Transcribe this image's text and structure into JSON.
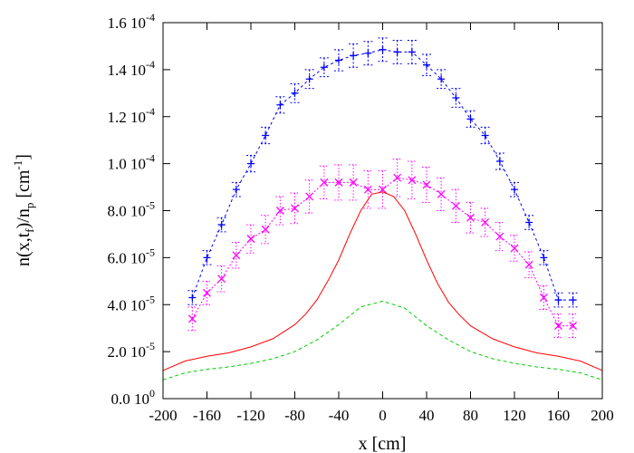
{
  "chart_data": {
    "type": "line",
    "title": "",
    "xlabel": "x [cm]",
    "ylabel": "n(x,t_f)/n_p [cm^-1]",
    "xlim": [
      -200,
      200
    ],
    "ylim": [
      0,
      0.00016
    ],
    "grid": false,
    "legend": "none",
    "x_ticks": [
      {
        "value": -200,
        "label": "-200"
      },
      {
        "value": -160,
        "label": "-160"
      },
      {
        "value": -120,
        "label": "-120"
      },
      {
        "value": -80,
        "label": "-80"
      },
      {
        "value": -40,
        "label": "-40"
      },
      {
        "value": 0,
        "label": "0"
      },
      {
        "value": 40,
        "label": "40"
      },
      {
        "value": 80,
        "label": "80"
      },
      {
        "value": 120,
        "label": "120"
      },
      {
        "value": 160,
        "label": "160"
      },
      {
        "value": 200,
        "label": "200"
      }
    ],
    "y_ticks": [
      {
        "value": 0,
        "mant": "0.0 10",
        "exp": "0"
      },
      {
        "value": 2e-05,
        "mant": "2.0 10",
        "exp": "-5"
      },
      {
        "value": 4e-05,
        "mant": "4.0 10",
        "exp": "-5"
      },
      {
        "value": 6e-05,
        "mant": "6.0 10",
        "exp": "-5"
      },
      {
        "value": 8e-05,
        "mant": "8.0 10",
        "exp": "-5"
      },
      {
        "value": 0.0001,
        "mant": "1.0 10",
        "exp": "-4"
      },
      {
        "value": 0.00012,
        "mant": "1.2 10",
        "exp": "-4"
      },
      {
        "value": 0.00014,
        "mant": "1.4 10",
        "exp": "-4"
      },
      {
        "value": 0.00016,
        "mant": "1.6 10",
        "exp": "-4"
      }
    ],
    "series": [
      {
        "color": "#0000ff",
        "marker": "plus",
        "dash": "3,3",
        "x": [
          -173.3,
          -160,
          -146.7,
          -133.3,
          -120,
          -106.7,
          -93.3,
          -80,
          -66.7,
          -53.3,
          -40,
          -26.7,
          -13.3,
          0,
          13.3,
          26.7,
          40,
          53.3,
          66.7,
          80,
          93.3,
          106.7,
          120,
          133.3,
          146.7,
          160,
          173.3
        ],
        "y": [
          4.3e-05,
          6e-05,
          7.4e-05,
          8.9e-05,
          0.0001,
          0.000112,
          0.000125,
          0.00013,
          0.000136,
          0.000141,
          0.000144,
          0.000146,
          0.000147,
          0.0001485,
          0.0001475,
          0.0001475,
          0.000142,
          0.000136,
          0.000128,
          0.000119,
          0.000112,
          0.000101,
          8.9e-05,
          7.5e-05,
          6e-05,
          4.2e-05,
          4.2e-05
        ],
        "err": [
          3e-06,
          3e-06,
          3e-06,
          3e-06,
          3.5e-06,
          3.5e-06,
          3.5e-06,
          4e-06,
          4e-06,
          4e-06,
          4.5e-06,
          5e-06,
          5e-06,
          5e-06,
          5e-06,
          5e-06,
          4.5e-06,
          4e-06,
          4e-06,
          3.5e-06,
          3.5e-06,
          3.5e-06,
          3e-06,
          3e-06,
          3e-06,
          3e-06,
          3e-06
        ]
      },
      {
        "color": "#ff00ff",
        "marker": "cross",
        "dash": "2,2",
        "x": [
          -173.3,
          -160,
          -146.7,
          -133.3,
          -120,
          -106.7,
          -93.3,
          -80,
          -66.7,
          -53.3,
          -40,
          -26.7,
          -13.3,
          0,
          13.3,
          26.7,
          40,
          53.3,
          66.7,
          80,
          93.3,
          106.7,
          120,
          133.3,
          146.7,
          160,
          173.3
        ],
        "y": [
          3.4e-05,
          4.5e-05,
          5.1e-05,
          6.1e-05,
          6.8e-05,
          7.2e-05,
          8e-05,
          8.1e-05,
          8.6e-05,
          9.2e-05,
          9.2e-05,
          9.2e-05,
          8.9e-05,
          8.9e-05,
          9.4e-05,
          9.3e-05,
          9.1e-05,
          8.7e-05,
          8.2e-05,
          7.7e-05,
          7.5e-05,
          6.9e-05,
          6.4e-05,
          5.7e-05,
          4.3e-05,
          3.1e-05,
          3.1e-05
        ],
        "err": [
          5e-06,
          5e-06,
          5.5e-06,
          5.5e-06,
          6e-06,
          6e-06,
          6e-06,
          6.5e-06,
          7e-06,
          7e-06,
          7.5e-06,
          7.5e-06,
          8e-06,
          8e-06,
          8e-06,
          8e-06,
          7.5e-06,
          7e-06,
          7e-06,
          6.5e-06,
          6e-06,
          6e-06,
          5.5e-06,
          5.5e-06,
          5e-06,
          5e-06,
          5e-06
        ]
      },
      {
        "color": "#ff0000",
        "marker": "none",
        "dash": "",
        "x": [
          -200,
          -180,
          -160,
          -140,
          -120,
          -100,
          -80,
          -70,
          -60,
          -50,
          -40,
          -30,
          -20,
          -10,
          0,
          10,
          20,
          30,
          40,
          50,
          60,
          70,
          80,
          100,
          120,
          140,
          160,
          180,
          200
        ],
        "y": [
          1.2e-05,
          1.6e-05,
          1.8e-05,
          1.95e-05,
          2.2e-05,
          2.55e-05,
          3.15e-05,
          3.6e-05,
          4.2e-05,
          5e-05,
          5.9e-05,
          7e-05,
          8e-05,
          8.7e-05,
          8.8e-05,
          8.6e-05,
          8e-05,
          7e-05,
          5.9e-05,
          4.9e-05,
          4.1e-05,
          3.55e-05,
          3.1e-05,
          2.55e-05,
          2.2e-05,
          1.95e-05,
          1.8e-05,
          1.6e-05,
          1.2e-05
        ]
      },
      {
        "color": "#00cc00",
        "marker": "none",
        "dash": "4,3",
        "x": [
          -200,
          -180,
          -160,
          -140,
          -120,
          -100,
          -80,
          -60,
          -40,
          -20,
          0,
          20,
          40,
          60,
          80,
          100,
          120,
          140,
          160,
          180,
          200
        ],
        "y": [
          8e-06,
          1.1e-05,
          1.25e-05,
          1.35e-05,
          1.5e-05,
          1.7e-05,
          2e-05,
          2.5e-05,
          3.15e-05,
          3.9e-05,
          4.15e-05,
          3.85e-05,
          3.1e-05,
          2.5e-05,
          2e-05,
          1.7e-05,
          1.5e-05,
          1.35e-05,
          1.25e-05,
          1.1e-05,
          8e-06
        ]
      }
    ]
  }
}
